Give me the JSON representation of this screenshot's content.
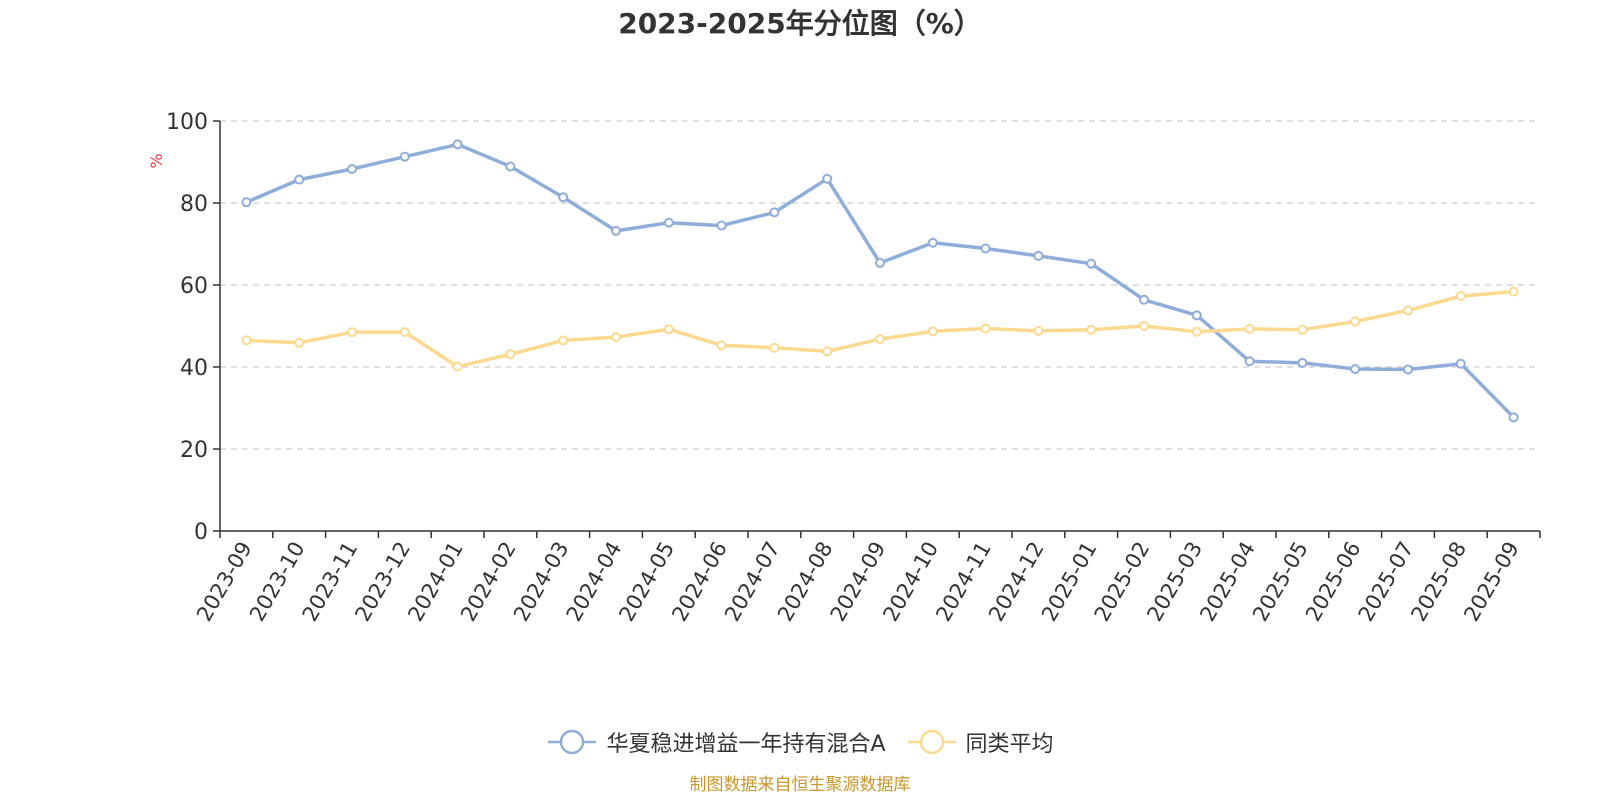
{
  "chart_data": {
    "type": "line",
    "title": "2023-2025年分位图（%）",
    "ylabel": "%",
    "ylim": [
      0,
      100
    ],
    "yticks": [
      0,
      20,
      40,
      60,
      80,
      100
    ],
    "grid": true,
    "legend_position": "bottom-center",
    "categories": [
      "2023-09",
      "2023-10",
      "2023-11",
      "2023-12",
      "2024-01",
      "2024-02",
      "2024-03",
      "2024-04",
      "2024-05",
      "2024-06",
      "2024-07",
      "2024-08",
      "2024-09",
      "2024-10",
      "2024-11",
      "2024-12",
      "2025-01",
      "2025-02",
      "2025-03",
      "2025-04",
      "2025-05",
      "2025-06",
      "2025-07",
      "2025-08",
      "2025-09"
    ],
    "series": [
      {
        "name": "华夏稳进增益一年持有混合A",
        "color": "#8eadd8",
        "values": [
          80.2,
          85.7,
          88.3,
          91.3,
          94.3,
          88.9,
          81.4,
          73.2,
          75.2,
          74.5,
          77.7,
          85.9,
          65.4,
          70.3,
          68.9,
          67.1,
          65.2,
          56.4,
          52.6,
          41.4,
          41.0,
          39.5,
          39.4,
          40.8,
          27.7
        ]
      },
      {
        "name": "同类平均",
        "color": "#fbd98f",
        "values": [
          46.5,
          45.9,
          48.5,
          48.5,
          40.1,
          43.1,
          46.5,
          47.3,
          49.2,
          45.3,
          44.7,
          43.8,
          46.8,
          48.7,
          49.4,
          48.8,
          49.1,
          50.0,
          48.6,
          49.3,
          49.1,
          51.1,
          53.8,
          57.3,
          58.4
        ]
      }
    ]
  },
  "source_text": "制图数据来自恒生聚源数据库"
}
